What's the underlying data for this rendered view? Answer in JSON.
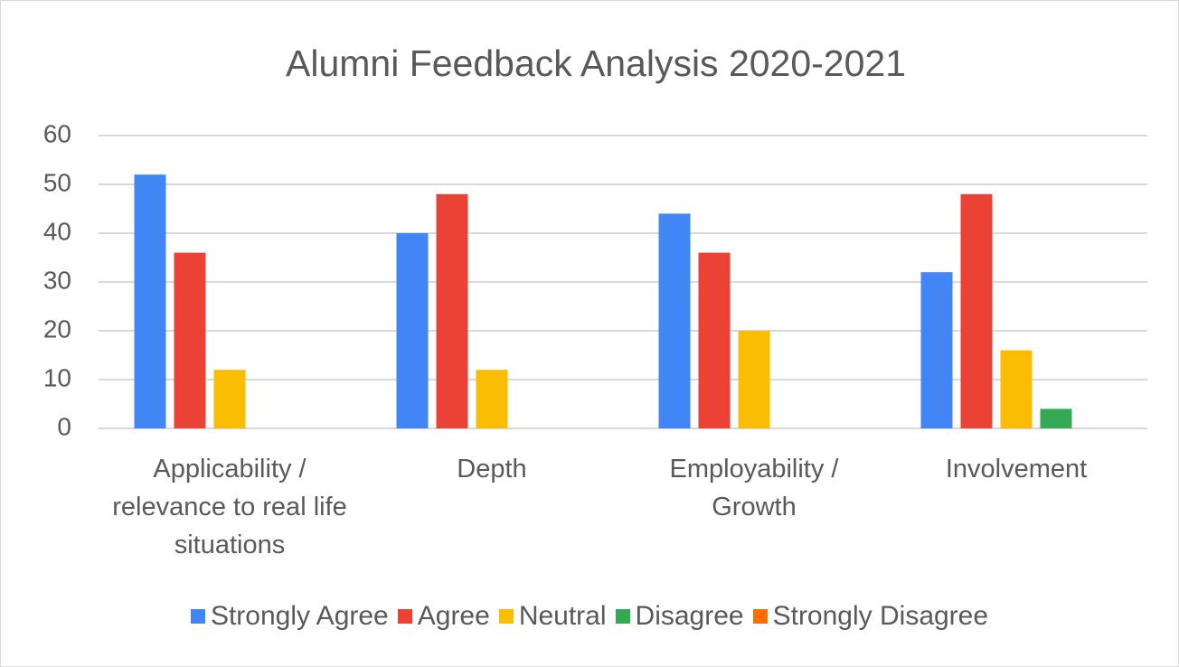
{
  "chart_data": {
    "type": "bar",
    "title": "Alumni Feedback Analysis 2020-2021",
    "categories": [
      "Applicability / relevance to real life situations",
      "Depth",
      "Employability / Growth",
      "Involvement"
    ],
    "series": [
      {
        "name": "Strongly Agree",
        "color": "#4285f4",
        "values": [
          52,
          40,
          44,
          32
        ]
      },
      {
        "name": "Agree",
        "color": "#ea4335",
        "values": [
          36,
          48,
          36,
          48
        ]
      },
      {
        "name": "Neutral",
        "color": "#fbbc04",
        "values": [
          12,
          12,
          20,
          16
        ]
      },
      {
        "name": "Disagree",
        "color": "#34a853",
        "values": [
          0,
          0,
          0,
          4
        ]
      },
      {
        "name": "Strongly Disagree",
        "color": "#ff6d01",
        "values": [
          0,
          0,
          0,
          0
        ]
      }
    ],
    "ylim": [
      0,
      60
    ],
    "yticks": [
      0,
      10,
      20,
      30,
      40,
      50,
      60
    ],
    "grid": true,
    "legend": "bottom"
  }
}
